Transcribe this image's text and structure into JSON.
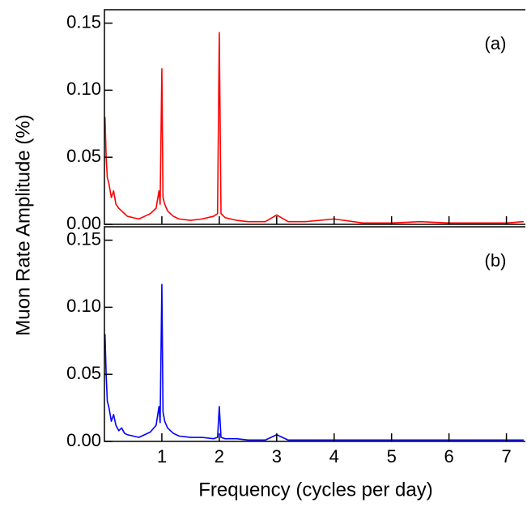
{
  "chart_data": [
    {
      "type": "line",
      "annotation": "(a)",
      "ylabel": "Muon Rate Amplitude (%)",
      "x": [
        0.01,
        0.03,
        0.05,
        0.08,
        0.12,
        0.16,
        0.2,
        0.25,
        0.3,
        0.35,
        0.4,
        0.5,
        0.6,
        0.7,
        0.8,
        0.9,
        0.95,
        0.97,
        1.0,
        1.02,
        1.05,
        1.1,
        1.2,
        1.3,
        1.5,
        1.7,
        1.9,
        1.97,
        2.0,
        2.03,
        2.1,
        2.3,
        2.5,
        2.8,
        3.0,
        3.2,
        3.5,
        4.0,
        4.5,
        5.0,
        5.5,
        6.0,
        6.5,
        7.0,
        7.3
      ],
      "series": [
        {
          "color": "#ff0000",
          "values": [
            0.08,
            0.05,
            0.035,
            0.03,
            0.02,
            0.025,
            0.015,
            0.012,
            0.01,
            0.008,
            0.006,
            0.005,
            0.004,
            0.006,
            0.008,
            0.012,
            0.025,
            0.015,
            0.116,
            0.02,
            0.015,
            0.01,
            0.006,
            0.004,
            0.003,
            0.004,
            0.006,
            0.008,
            0.143,
            0.008,
            0.005,
            0.003,
            0.002,
            0.002,
            0.007,
            0.002,
            0.002,
            0.004,
            0.001,
            0.001,
            0.002,
            0.001,
            0.001,
            0.001,
            0.002
          ]
        }
      ],
      "xlim": [
        0,
        7.33
      ],
      "ylim": [
        0,
        0.16
      ],
      "xticks": [
        1,
        2,
        3,
        4,
        5,
        6,
        7
      ],
      "yticks": [
        {
          "value": 0,
          "label": "0.00"
        },
        {
          "value": 0.05,
          "label": "0.05"
        },
        {
          "value": 0.1,
          "label": "0.10"
        },
        {
          "value": 0.15,
          "label": "0.15"
        }
      ]
    },
    {
      "type": "line",
      "annotation": "(b)",
      "xlabel": "Frequency (cycles per day)",
      "x": [
        0.01,
        0.03,
        0.05,
        0.08,
        0.12,
        0.16,
        0.2,
        0.25,
        0.3,
        0.35,
        0.4,
        0.5,
        0.6,
        0.7,
        0.8,
        0.9,
        0.95,
        0.97,
        1.0,
        1.02,
        1.05,
        1.1,
        1.2,
        1.3,
        1.5,
        1.7,
        1.9,
        1.97,
        2.0,
        2.03,
        2.1,
        2.3,
        2.5,
        2.8,
        3.0,
        3.2,
        3.5,
        4.0,
        4.5,
        5.0,
        5.5,
        6.0,
        6.5,
        7.0,
        7.3
      ],
      "series": [
        {
          "color": "#0000ff",
          "values": [
            0.08,
            0.05,
            0.03,
            0.025,
            0.015,
            0.02,
            0.012,
            0.008,
            0.01,
            0.006,
            0.005,
            0.004,
            0.003,
            0.005,
            0.007,
            0.012,
            0.026,
            0.014,
            0.117,
            0.022,
            0.015,
            0.01,
            0.006,
            0.004,
            0.003,
            0.003,
            0.002,
            0.003,
            0.026,
            0.003,
            0.002,
            0.002,
            0.001,
            0.001,
            0.005,
            0.001,
            0.001,
            0.001,
            0.001,
            0.001,
            0.001,
            0.001,
            0.001,
            0.001,
            0.001
          ]
        }
      ],
      "xlim": [
        0,
        7.33
      ],
      "ylim": [
        0,
        0.16
      ],
      "xticks": [
        1,
        2,
        3,
        4,
        5,
        6,
        7
      ],
      "yticks": [
        {
          "value": 0,
          "label": "0.00"
        },
        {
          "value": 0.05,
          "label": "0.05"
        },
        {
          "value": 0.1,
          "label": "0.10"
        },
        {
          "value": 0.15,
          "label": "0.15"
        }
      ]
    }
  ]
}
